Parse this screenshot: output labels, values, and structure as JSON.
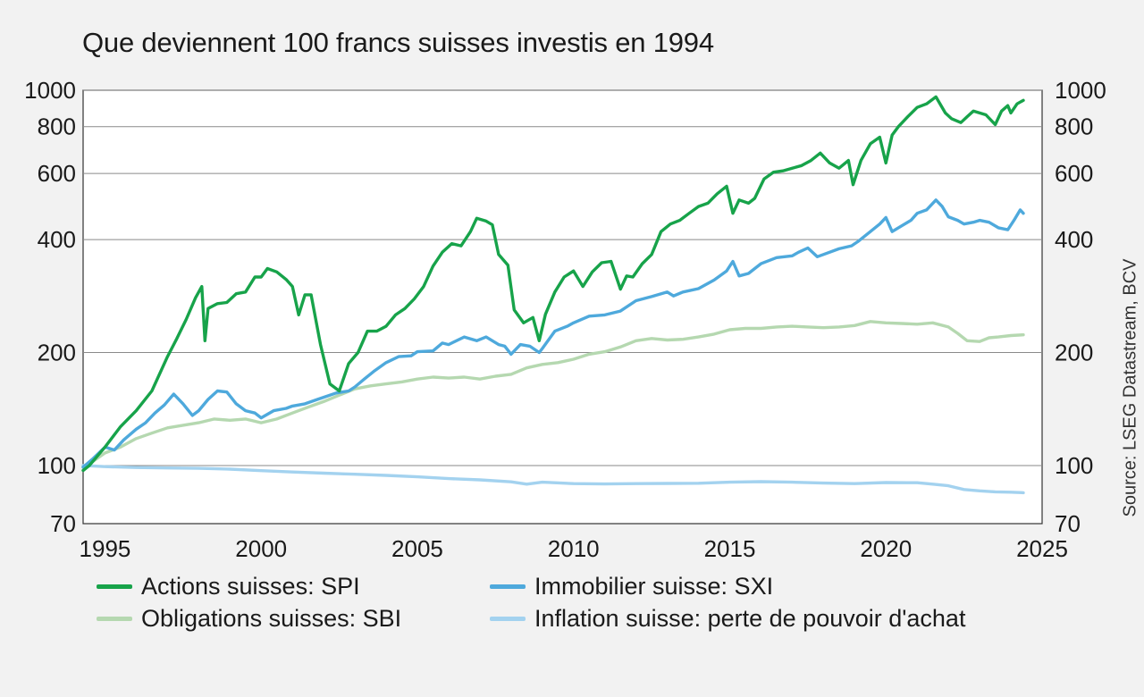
{
  "title": "Que deviennent 100 francs suisses investis en 1994",
  "source": "Source: LSEG Datastream, BCV",
  "chart_data": {
    "type": "line",
    "title": "Que deviennent 100 francs suisses investis en 1994",
    "xlabel": "",
    "ylabel": "",
    "x_scale": "linear",
    "y_scale": "log",
    "xlim": [
      1994.3,
      2025
    ],
    "ylim": [
      70,
      1000
    ],
    "x_ticks": [
      1995,
      2000,
      2005,
      2010,
      2015,
      2020,
      2025
    ],
    "x_tick_labels": [
      "1995",
      "2000",
      "2005",
      "2010",
      "2015",
      "2020",
      "2025"
    ],
    "y_ticks": [
      70,
      100,
      200,
      400,
      600,
      800,
      1000
    ],
    "y_tick_labels": [
      "70",
      "100",
      "200",
      "400",
      "600",
      "800",
      "1000"
    ],
    "y_gridlines": [
      100,
      200,
      400,
      600,
      800,
      1000
    ],
    "grid": true,
    "legend_position": "bottom",
    "series": [
      {
        "name": "Actions suisses: SPI",
        "color": "#17a34a",
        "x": [
          1994.3,
          1994.5,
          1995.0,
          1995.5,
          1996.0,
          1996.5,
          1997.0,
          1997.3,
          1997.6,
          1997.9,
          1998.1,
          1998.2,
          1998.3,
          1998.6,
          1998.9,
          1999.2,
          1999.5,
          1999.8,
          2000.0,
          2000.2,
          2000.5,
          2000.8,
          2001.0,
          2001.2,
          2001.4,
          2001.6,
          2001.9,
          2002.2,
          2002.5,
          2002.8,
          2003.1,
          2003.4,
          2003.7,
          2004.0,
          2004.3,
          2004.6,
          2004.9,
          2005.2,
          2005.5,
          2005.8,
          2006.1,
          2006.4,
          2006.7,
          2006.9,
          2007.2,
          2007.4,
          2007.6,
          2007.9,
          2008.1,
          2008.4,
          2008.7,
          2008.9,
          2009.1,
          2009.4,
          2009.7,
          2010.0,
          2010.3,
          2010.6,
          2010.9,
          2011.2,
          2011.5,
          2011.7,
          2011.9,
          2012.2,
          2012.5,
          2012.8,
          2013.1,
          2013.4,
          2013.7,
          2014.0,
          2014.3,
          2014.6,
          2014.9,
          2015.1,
          2015.3,
          2015.6,
          2015.8,
          2016.1,
          2016.4,
          2016.7,
          2017.0,
          2017.3,
          2017.6,
          2017.9,
          2018.2,
          2018.5,
          2018.8,
          2018.95,
          2019.2,
          2019.5,
          2019.8,
          2020.0,
          2020.2,
          2020.4,
          2020.7,
          2021.0,
          2021.3,
          2021.6,
          2021.9,
          2022.1,
          2022.4,
          2022.6,
          2022.8,
          2023.0,
          2023.2,
          2023.5,
          2023.7,
          2023.9,
          2024.0,
          2024.2,
          2024.4
        ],
        "values": [
          97,
          100,
          112,
          127,
          140,
          158,
          195,
          218,
          245,
          280,
          300,
          215,
          262,
          270,
          272,
          287,
          290,
          318,
          318,
          335,
          328,
          313,
          300,
          252,
          285,
          285,
          210,
          165,
          158,
          187,
          200,
          228,
          228,
          235,
          252,
          262,
          278,
          300,
          340,
          370,
          390,
          385,
          420,
          456,
          448,
          438,
          365,
          342,
          260,
          240,
          248,
          215,
          253,
          290,
          318,
          330,
          300,
          328,
          347,
          350,
          295,
          320,
          318,
          345,
          365,
          420,
          440,
          450,
          470,
          490,
          500,
          530,
          555,
          470,
          510,
          500,
          515,
          580,
          605,
          610,
          620,
          630,
          650,
          680,
          640,
          620,
          650,
          560,
          650,
          720,
          750,
          640,
          760,
          800,
          850,
          900,
          920,
          960,
          870,
          840,
          820,
          850,
          880,
          870,
          860,
          810,
          880,
          910,
          870,
          920,
          940
        ]
      },
      {
        "name": "Immobilier suisse: SXI",
        "color": "#4ea9dc",
        "x": [
          1994.3,
          1994.6,
          1995.0,
          1995.3,
          1995.6,
          1996.0,
          1996.3,
          1996.6,
          1996.9,
          1997.2,
          1997.5,
          1997.8,
          1998.0,
          1998.3,
          1998.6,
          1998.9,
          1999.2,
          1999.5,
          1999.8,
          2000.0,
          2000.4,
          2000.8,
          2001.0,
          2001.4,
          2001.8,
          2002.0,
          2002.4,
          2002.8,
          2003.0,
          2003.3,
          2003.6,
          2004.0,
          2004.4,
          2004.8,
          2005.0,
          2005.5,
          2005.8,
          2006.0,
          2006.5,
          2006.9,
          2007.2,
          2007.6,
          2007.8,
          2008.0,
          2008.3,
          2008.6,
          2008.9,
          2009.0,
          2009.4,
          2009.8,
          2010.0,
          2010.5,
          2011.0,
          2011.5,
          2012.0,
          2012.5,
          2013.0,
          2013.2,
          2013.5,
          2014.0,
          2014.5,
          2014.9,
          2015.1,
          2015.3,
          2015.6,
          2016.0,
          2016.5,
          2017.0,
          2017.2,
          2017.5,
          2017.8,
          2018.0,
          2018.5,
          2018.9,
          2019.1,
          2019.5,
          2019.8,
          2020.0,
          2020.2,
          2020.4,
          2020.8,
          2021.0,
          2021.3,
          2021.6,
          2021.8,
          2022.0,
          2022.3,
          2022.5,
          2022.8,
          2023.0,
          2023.3,
          2023.6,
          2023.9,
          2024.1,
          2024.3,
          2024.4
        ],
        "values": [
          99,
          104,
          112,
          110,
          117,
          125,
          130,
          138,
          145,
          155,
          146,
          136,
          140,
          150,
          158,
          157,
          146,
          140,
          138,
          134,
          140,
          142,
          144,
          146,
          150,
          152,
          156,
          158,
          162,
          170,
          178,
          188,
          195,
          196,
          201,
          202,
          212,
          210,
          220,
          215,
          220,
          210,
          208,
          198,
          210,
          208,
          200,
          205,
          228,
          235,
          240,
          250,
          252,
          258,
          275,
          282,
          290,
          283,
          290,
          296,
          312,
          330,
          350,
          320,
          325,
          345,
          358,
          362,
          370,
          380,
          360,
          365,
          378,
          385,
          395,
          420,
          440,
          458,
          420,
          430,
          450,
          470,
          480,
          510,
          490,
          460,
          450,
          440,
          445,
          450,
          445,
          430,
          425,
          450,
          480,
          470
        ]
      },
      {
        "name": "Obligations suisses: SBI",
        "color": "#b5d8b0",
        "x": [
          1994.3,
          1994.5,
          1995.0,
          1995.5,
          1996.0,
          1996.5,
          1997.0,
          1997.5,
          1998.0,
          1998.5,
          1999.0,
          1999.5,
          2000.0,
          2000.5,
          2001.0,
          2001.5,
          2002.0,
          2002.5,
          2003.0,
          2003.5,
          2004.0,
          2004.5,
          2005.0,
          2005.5,
          2006.0,
          2006.5,
          2007.0,
          2007.5,
          2008.0,
          2008.5,
          2009.0,
          2009.5,
          2010.0,
          2010.5,
          2011.0,
          2011.5,
          2012.0,
          2012.5,
          2013.0,
          2013.5,
          2014.0,
          2014.5,
          2015.0,
          2015.5,
          2016.0,
          2016.5,
          2017.0,
          2017.5,
          2018.0,
          2018.5,
          2019.0,
          2019.5,
          2020.0,
          2020.5,
          2021.0,
          2021.5,
          2022.0,
          2022.3,
          2022.6,
          2023.0,
          2023.3,
          2023.6,
          2024.0,
          2024.4
        ],
        "values": [
          99,
          101,
          108,
          112,
          118,
          122,
          126,
          128,
          130,
          133,
          132,
          133,
          130,
          133,
          138,
          143,
          148,
          154,
          160,
          163,
          165,
          167,
          170,
          172,
          171,
          172,
          170,
          173,
          175,
          182,
          186,
          188,
          192,
          198,
          201,
          207,
          215,
          218,
          216,
          217,
          220,
          224,
          230,
          232,
          232,
          234,
          235,
          234,
          233,
          234,
          236,
          242,
          240,
          239,
          238,
          240,
          234,
          225,
          215,
          214,
          219,
          220,
          222,
          223
        ]
      },
      {
        "name": "Inflation suisse: perte de pouvoir d'achat",
        "color": "#a3d2ef",
        "x": [
          1994.3,
          1995.0,
          1996.0,
          1997.0,
          1998.0,
          1999.0,
          2000.0,
          2001.0,
          2002.0,
          2003.0,
          2004.0,
          2005.0,
          2006.0,
          2007.0,
          2008.0,
          2008.5,
          2009.0,
          2010.0,
          2011.0,
          2012.0,
          2013.0,
          2014.0,
          2015.0,
          2016.0,
          2017.0,
          2018.0,
          2019.0,
          2020.0,
          2021.0,
          2021.5,
          2022.0,
          2022.5,
          2023.0,
          2023.5,
          2024.0,
          2024.4
        ],
        "values": [
          100,
          99.3,
          98.8,
          98.5,
          98.3,
          97.8,
          96.9,
          96.1,
          95.4,
          94.8,
          94.1,
          93.3,
          92.3,
          91.6,
          90.5,
          89.2,
          90.3,
          89.5,
          89.3,
          89.5,
          89.6,
          89.7,
          90.3,
          90.6,
          90.3,
          89.8,
          89.5,
          90.1,
          90.0,
          89.2,
          88.3,
          86.3,
          85.6,
          85.1,
          84.9,
          84.6
        ]
      }
    ]
  }
}
